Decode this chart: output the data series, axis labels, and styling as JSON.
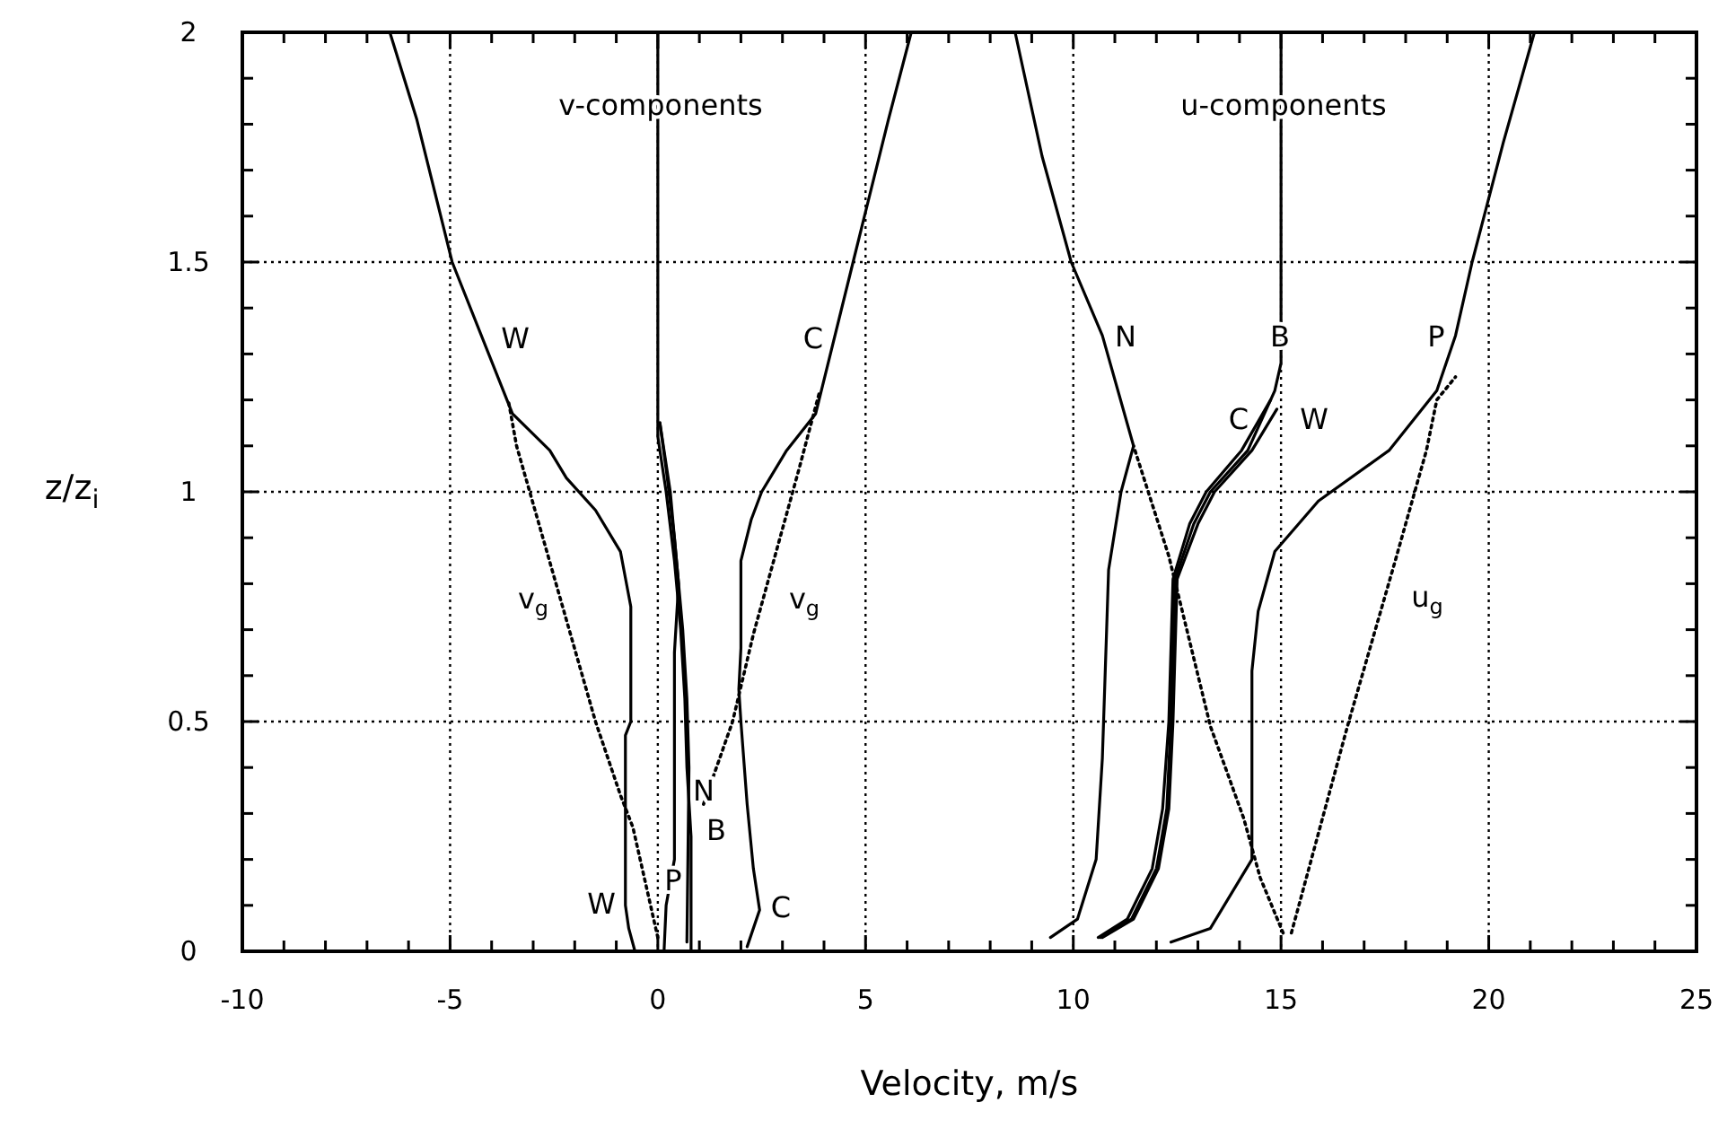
{
  "chart_data": {
    "type": "line",
    "xlabel": "Velocity, m/s",
    "ylabel": "z/z$_{i}$",
    "xlim": [
      -10,
      25
    ],
    "ylim": [
      0,
      2
    ],
    "xticks": [
      -10,
      {
        "value": -9,
        "label": null
      },
      {
        "value": -8,
        "label": null
      },
      {
        "value": -7,
        "label": null
      },
      {
        "value": -6,
        "label": null
      },
      -5,
      {
        "value": -4,
        "label": null
      },
      {
        "value": -3,
        "label": null
      },
      {
        "value": -2,
        "label": null
      },
      {
        "value": -1,
        "label": null
      },
      0,
      {
        "value": 1,
        "label": null
      },
      {
        "value": 2,
        "label": null
      },
      {
        "value": 3,
        "label": null
      },
      {
        "value": 4,
        "label": null
      },
      5,
      {
        "value": 6,
        "label": null
      },
      {
        "value": 7,
        "label": null
      },
      {
        "value": 8,
        "label": null
      },
      {
        "value": 9,
        "label": null
      },
      10,
      {
        "value": 11,
        "label": null
      },
      {
        "value": 12,
        "label": null
      },
      {
        "value": 13,
        "label": null
      },
      {
        "value": 14,
        "label": null
      },
      15,
      {
        "value": 16,
        "label": null
      },
      {
        "value": 17,
        "label": null
      },
      {
        "value": 18,
        "label": null
      },
      {
        "value": 19,
        "label": null
      },
      20,
      {
        "value": 21,
        "label": null
      },
      {
        "value": 22,
        "label": null
      },
      {
        "value": 23,
        "label": null
      },
      {
        "value": 24,
        "label": null
      },
      25
    ],
    "yticks": [
      0,
      {
        "value": 0.1,
        "label": null
      },
      {
        "value": 0.2,
        "label": null
      },
      {
        "value": 0.3,
        "label": null
      },
      {
        "value": 0.4,
        "label": null
      },
      0.5,
      {
        "value": 0.6,
        "label": null
      },
      {
        "value": 0.7,
        "label": null
      },
      {
        "value": 0.8,
        "label": null
      },
      {
        "value": 0.9,
        "label": null
      },
      1,
      {
        "value": 1.1,
        "label": null
      },
      {
        "value": 1.2,
        "label": null
      },
      {
        "value": 1.3,
        "label": null
      },
      {
        "value": 1.4,
        "label": null
      },
      1.5,
      {
        "value": 1.6,
        "label": null
      },
      {
        "value": 1.7,
        "label": null
      },
      {
        "value": 1.8,
        "label": null
      },
      {
        "value": 1.9,
        "label": null
      },
      2
    ],
    "grid": true,
    "series": [
      {
        "name": "W",
        "color": "#000000",
        "line_style": "solid",
        "x": [
          -0.55,
          -0.7,
          -0.78,
          -0.78,
          -0.65,
          -0.65,
          -0.9,
          -1.5,
          -2.2,
          -2.6,
          -3.5,
          -4.95,
          -5.8,
          -6.45
        ],
        "values": [
          0,
          0.05,
          0.1,
          0.47,
          0.5,
          0.75,
          0.87,
          0.96,
          1.03,
          1.09,
          1.17,
          1.5,
          1.81,
          2
        ]
      },
      {
        "name": "C",
        "color": "#000000",
        "line_style": "solid",
        "x": [
          2.15,
          2.45,
          2.3,
          2.15,
          2.0,
          1.95,
          2.0,
          2.0,
          2.25,
          2.5,
          2.7,
          3.1,
          3.8,
          4.7,
          5.55,
          6.1
        ],
        "values": [
          0.01,
          0.09,
          0.18,
          0.32,
          0.5,
          0.57,
          0.66,
          0.85,
          0.94,
          1.0,
          1.03,
          1.09,
          1.17,
          1.5,
          1.81,
          2
        ]
      },
      {
        "name": "B",
        "color": "#000000",
        "line_style": "solid",
        "x": [
          0.8,
          0.8,
          0.7,
          0.65,
          0.55,
          0.4,
          0.2,
          0,
          0
        ],
        "values": [
          0,
          0.25,
          0.4,
          0.55,
          0.7,
          0.85,
          1.0,
          1.12,
          2
        ]
      },
      {
        "name": "N",
        "color": "#000000",
        "line_style": "solid",
        "x": [
          0.7,
          0.75,
          0.7,
          0.6,
          0.4,
          0.2,
          0.05
        ],
        "values": [
          0.02,
          0.4,
          0.55,
          0.7,
          0.9,
          1.05,
          1.15
        ]
      },
      {
        "name": "P",
        "color": "#000000",
        "line_style": "solid",
        "x": [
          0.15,
          0.2,
          0.4,
          0.4,
          0.5,
          0.3,
          0.05
        ],
        "values": [
          0,
          0.1,
          0.2,
          0.65,
          0.8,
          1.0,
          1.15
        ]
      },
      {
        "name": "v$_{g}$",
        "color": "#000000",
        "line_style": "dotted",
        "x": [
          0,
          -0.6,
          -0.9,
          -1.5,
          -3.4,
          -3.6
        ],
        "values": [
          0.03,
          0.27,
          0.34,
          0.5,
          1.1,
          1.2
        ]
      },
      {
        "name": "v$_{g}$",
        "color": "#000000",
        "line_style": "dotted",
        "x": [
          1.1,
          1.8,
          2.3,
          3.4,
          3.9
        ],
        "values": [
          0.32,
          0.5,
          0.69,
          1.05,
          1.22
        ]
      },
      {
        "name": "N",
        "color": "#000000",
        "line_style": "solid",
        "x": [
          9.45,
          10.1,
          10.55,
          10.7,
          10.85,
          11.15,
          11.45,
          10.7,
          9.95,
          9.25,
          8.6
        ],
        "values": [
          0.03,
          0.07,
          0.2,
          0.42,
          0.83,
          1.0,
          1.1,
          1.34,
          1.5,
          1.73,
          2
        ]
      },
      {
        "name": "B",
        "color": "#000000",
        "line_style": "solid",
        "x": [
          10.65,
          11.4,
          12.0,
          12.25,
          12.35,
          12.45,
          12.9,
          13.3,
          14.2,
          14.85,
          15,
          15
        ],
        "values": [
          0.03,
          0.07,
          0.18,
          0.31,
          0.5,
          0.81,
          0.93,
          1.0,
          1.09,
          1.22,
          1.28,
          2
        ]
      },
      {
        "name": "C",
        "color": "#000000",
        "line_style": "solid",
        "x": [
          10.6,
          11.3,
          11.9,
          12.15,
          12.3,
          12.4,
          12.8,
          13.2,
          14.05,
          14.75
        ],
        "values": [
          0.03,
          0.07,
          0.18,
          0.31,
          0.5,
          0.81,
          0.93,
          1.0,
          1.09,
          1.2
        ]
      },
      {
        "name": "W",
        "color": "#000000",
        "line_style": "solid",
        "x": [
          10.7,
          11.45,
          12.05,
          12.3,
          12.4,
          12.5,
          13.0,
          13.4,
          14.3,
          14.9
        ],
        "values": [
          0.03,
          0.07,
          0.18,
          0.31,
          0.5,
          0.81,
          0.93,
          1.0,
          1.09,
          1.18
        ]
      },
      {
        "name": "P",
        "color": "#000000",
        "line_style": "solid",
        "x": [
          12.35,
          13.3,
          14.3,
          14.3,
          14.45,
          14.85,
          15.9,
          17.6,
          18.75,
          19.2,
          19.6,
          20.35,
          21.1
        ],
        "values": [
          0.02,
          0.05,
          0.2,
          0.61,
          0.74,
          0.87,
          0.98,
          1.09,
          1.22,
          1.34,
          1.5,
          1.76,
          2
        ]
      },
      {
        "color": "#000000",
        "line_style": "dotted",
        "x": [
          15.05,
          14.5,
          14.1,
          13.3,
          12.3,
          11.45
        ],
        "values": [
          0.04,
          0.16,
          0.29,
          0.49,
          0.86,
          1.1
        ]
      },
      {
        "name": "u$_{g}$",
        "color": "#000000",
        "line_style": "dotted",
        "x": [
          15.25,
          16.6,
          17.75,
          18.5,
          18.75,
          19.2
        ],
        "values": [
          0.04,
          0.49,
          0.85,
          1.09,
          1.2,
          1.25
        ]
      }
    ],
    "annotations": [
      "v-components",
      "u-components"
    ]
  }
}
